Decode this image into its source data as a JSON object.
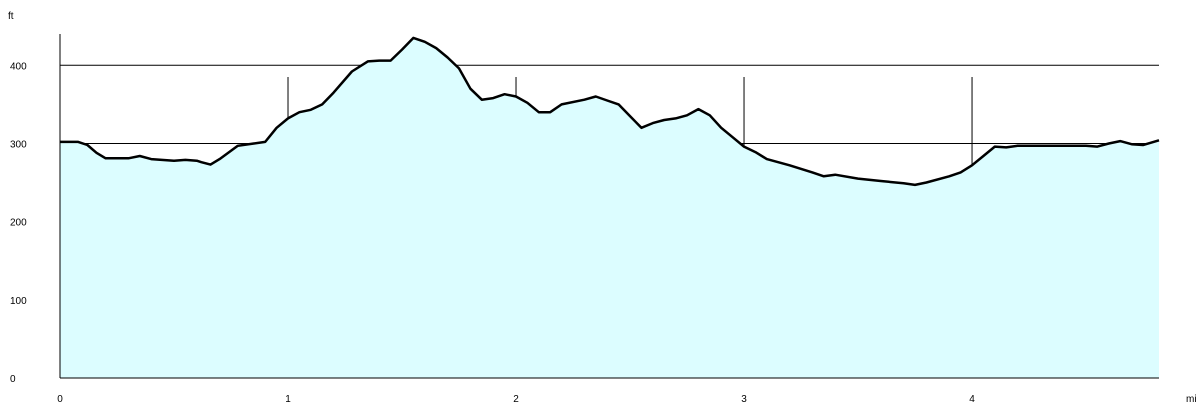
{
  "chart_data": {
    "type": "area",
    "title": "",
    "x_unit": "mi",
    "y_unit": "ft",
    "xlim": [
      0,
      4.82
    ],
    "ylim": [
      0,
      440
    ],
    "x_ticks": [
      0,
      1,
      2,
      3,
      4
    ],
    "y_ticks": [
      0,
      100,
      200,
      300,
      400
    ],
    "grid": true,
    "colors": {
      "fill": "#dcfdff",
      "line": "#000000",
      "grid": "#000000"
    },
    "series": [
      {
        "x": [
          0,
          0.08,
          0.12,
          0.16,
          0.2,
          0.3,
          0.35,
          0.4,
          0.5,
          0.55,
          0.6,
          0.62,
          0.66,
          0.7,
          0.78,
          0.85,
          0.9,
          0.95,
          1.0,
          1.05,
          1.1,
          1.15,
          1.2,
          1.28,
          1.35,
          1.4,
          1.45,
          1.5,
          1.55,
          1.6,
          1.65,
          1.7,
          1.75,
          1.8,
          1.85,
          1.9,
          1.95,
          2.0,
          2.05,
          2.1,
          2.15,
          2.2,
          2.3,
          2.35,
          2.4,
          2.45,
          2.5,
          2.55,
          2.6,
          2.65,
          2.7,
          2.75,
          2.8,
          2.85,
          2.9,
          2.95,
          3.0,
          3.05,
          3.1,
          3.2,
          3.3,
          3.35,
          3.4,
          3.5,
          3.6,
          3.7,
          3.75,
          3.8,
          3.9,
          3.95,
          4.0,
          4.05,
          4.1,
          4.15,
          4.2,
          4.3,
          4.4,
          4.5,
          4.55,
          4.6,
          4.65,
          4.7,
          4.75,
          4.82
        ],
        "y": [
          302,
          302,
          298,
          288,
          281,
          281,
          284,
          280,
          278,
          279,
          278,
          276,
          273,
          280,
          297,
          300,
          302,
          320,
          332,
          340,
          343,
          350,
          365,
          392,
          405,
          406,
          406,
          420,
          435,
          430,
          422,
          410,
          396,
          370,
          356,
          358,
          363,
          360,
          352,
          340,
          340,
          350,
          356,
          360,
          355,
          350,
          335,
          320,
          326,
          330,
          332,
          336,
          344,
          336,
          320,
          308,
          296,
          289,
          280,
          272,
          263,
          258,
          260,
          255,
          252,
          249,
          247,
          250,
          258,
          263,
          272,
          284,
          296,
          295,
          297,
          297,
          297,
          297,
          296,
          300,
          303,
          299,
          298,
          304
        ]
      }
    ]
  }
}
